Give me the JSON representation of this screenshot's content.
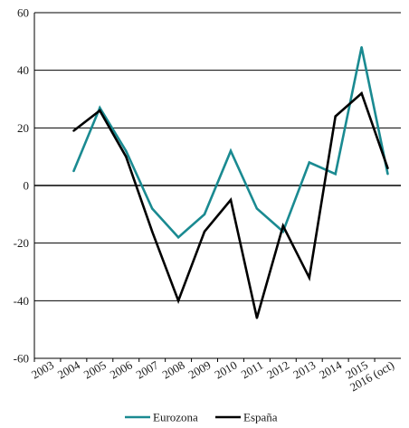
{
  "chart_data": {
    "type": "line",
    "title": "",
    "xlabel": "",
    "ylabel": "",
    "categories": [
      "2003",
      "2004",
      "2005",
      "2006",
      "2007",
      "2008",
      "2009",
      "2010",
      "2011",
      "2012",
      "2013",
      "2014",
      "2015",
      "2016 (oct)"
    ],
    "ylim": [
      -60,
      60
    ],
    "yticks": [
      60,
      40,
      20,
      0,
      -20,
      -40,
      -60
    ],
    "grid": "horizontal",
    "legend_position": "bottom",
    "series": [
      {
        "name": "Eurozona",
        "color": "#1a8a91",
        "x": [
          "2004",
          "2005",
          "2006",
          "2007",
          "2008",
          "2009",
          "2010",
          "2011",
          "2012",
          "2013",
          "2014",
          "2015",
          "2016 (oct)"
        ],
        "values": [
          5,
          27,
          12,
          -8,
          -18,
          -10,
          12,
          -8,
          -16,
          8,
          4,
          48,
          4
        ]
      },
      {
        "name": "España",
        "color": "#000000",
        "x": [
          "2004",
          "2005",
          "2006",
          "2007",
          "2008",
          "2009",
          "2010",
          "2011",
          "2012",
          "2013",
          "2014",
          "2015",
          "2016 (oct)"
        ],
        "values": [
          19,
          26,
          10,
          -16,
          -40,
          -16,
          -5,
          -46,
          -14,
          -32,
          24,
          32,
          6
        ]
      }
    ]
  }
}
